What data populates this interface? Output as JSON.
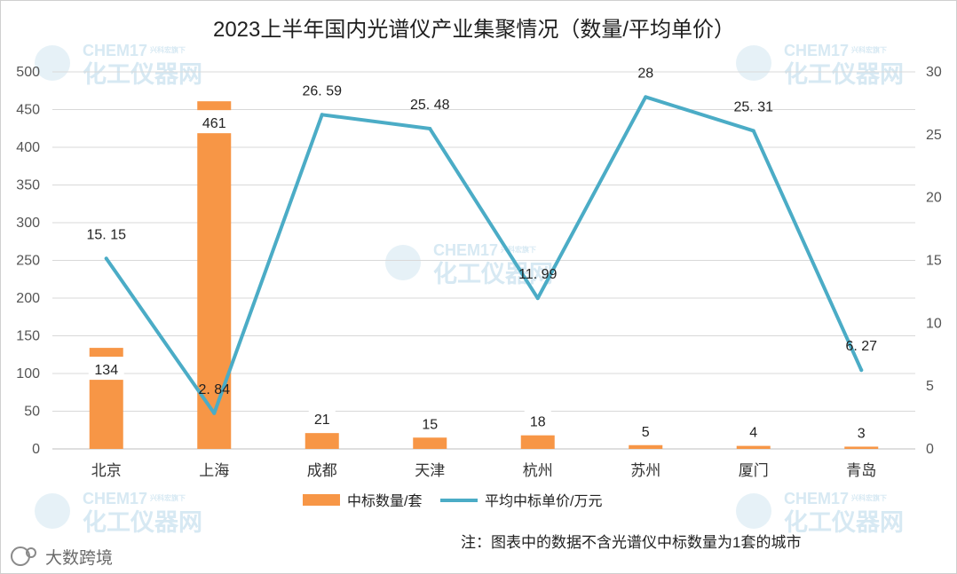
{
  "chart_data": {
    "type": "bar",
    "title": "2023上半年国内光谱仪产业集聚情况（数量/平均单价）",
    "categories": [
      "北京",
      "上海",
      "成都",
      "天津",
      "杭州",
      "苏州",
      "厦门",
      "青岛"
    ],
    "series": [
      {
        "name": "中标数量/套",
        "type": "bar",
        "axis": "left",
        "values": [
          134,
          461,
          21,
          15,
          18,
          5,
          4,
          3
        ],
        "labels": [
          "134",
          "461",
          "21",
          "15",
          "18",
          "5",
          "4",
          "3"
        ],
        "color": "#F79646"
      },
      {
        "name": "平均中标单价/万元",
        "type": "line",
        "axis": "right",
        "values": [
          15.15,
          2.84,
          26.59,
          25.48,
          11.99,
          28,
          25.31,
          6.27
        ],
        "labels": [
          "15. 15",
          "2. 84",
          "26. 59",
          "25. 48",
          "11. 99",
          "28",
          "25. 31",
          "6. 27"
        ],
        "color": "#4BACC6"
      }
    ],
    "y_left": {
      "ylim": [
        0,
        500
      ],
      "ticks": [
        "0",
        "50",
        "100",
        "150",
        "200",
        "250",
        "300",
        "350",
        "400",
        "450",
        "500"
      ]
    },
    "y_right": {
      "ylim": [
        0,
        30
      ],
      "ticks": [
        "0",
        "5",
        "10",
        "15",
        "20",
        "25",
        "30"
      ]
    },
    "grid": true,
    "legend_position": "bottom",
    "note": "注：图表中的数据不含光谱仪中标数量为1套的城市"
  },
  "watermark": {
    "brand": "CHEM17",
    "slogan": "化工仪器网",
    "tagline": "兴科宏旗下"
  },
  "source_mark": {
    "text": "大数跨境"
  }
}
